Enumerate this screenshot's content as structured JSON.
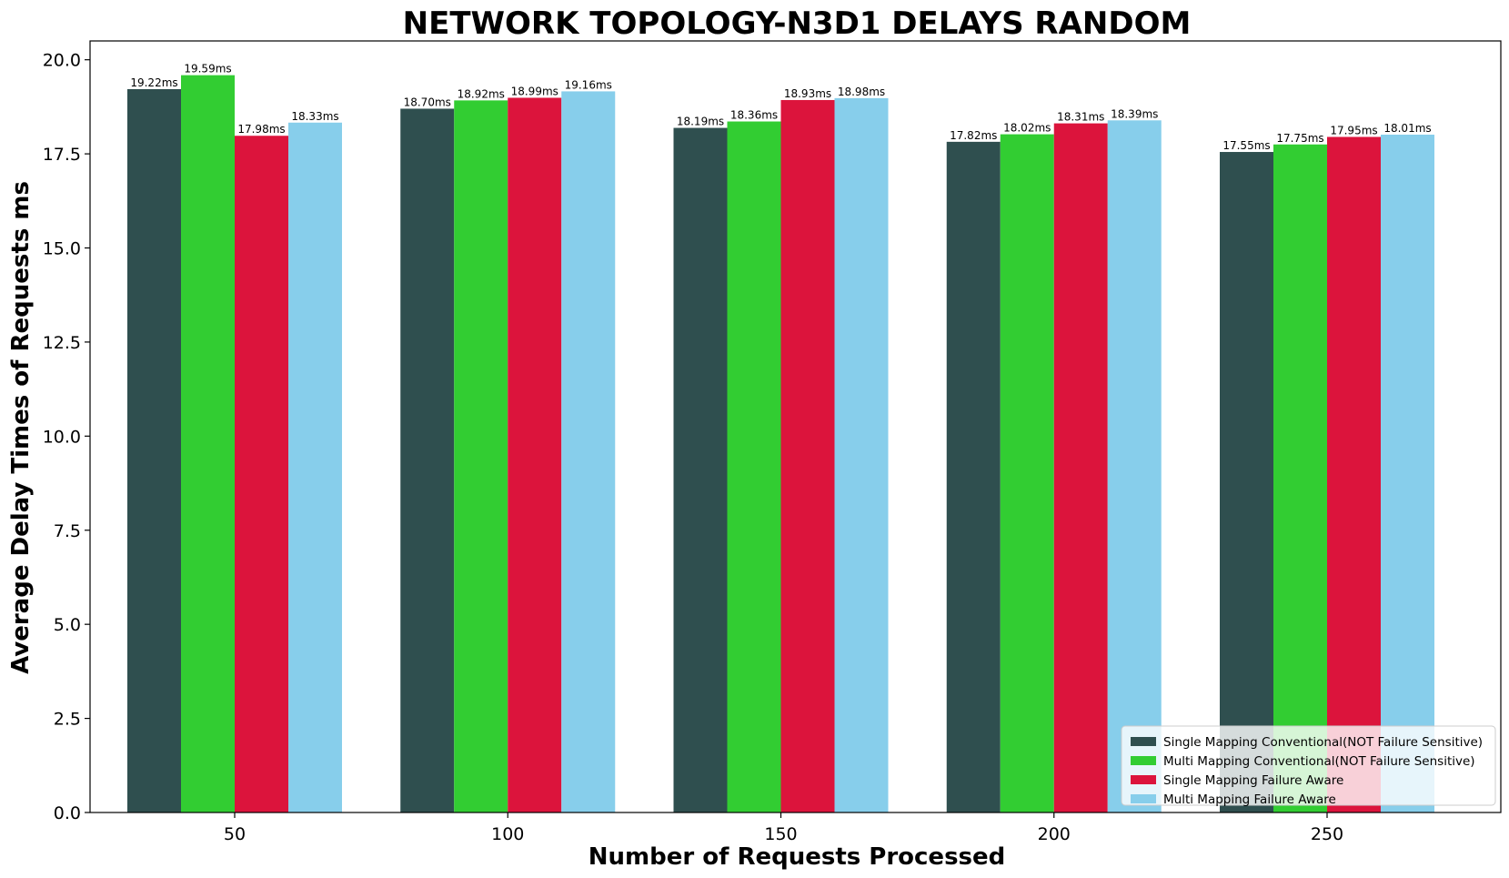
{
  "chart_data": {
    "type": "bar",
    "title": "NETWORK TOPOLOGY-N3D1 DELAYS RANDOM",
    "xlabel": "Number of Requests Processed",
    "ylabel": "Average Delay Times of Requests ms",
    "categories": [
      "50",
      "100",
      "150",
      "200",
      "250"
    ],
    "ylim": [
      0,
      20.5
    ],
    "yticks": [
      "0.0",
      "2.5",
      "5.0",
      "7.5",
      "10.0",
      "12.5",
      "15.0",
      "17.5",
      "20.0"
    ],
    "grid": false,
    "legend_position": "bottom-right",
    "series": [
      {
        "name": "Single Mapping Conventional(NOT Failure Sensitive)",
        "color": "#2f4f4f",
        "values": [
          19.22,
          18.7,
          18.19,
          17.82,
          17.55
        ],
        "labels": [
          "19.22ms",
          "18.70ms",
          "18.19ms",
          "17.82ms",
          "17.55ms"
        ]
      },
      {
        "name": "Multi Mapping Conventional(NOT Failure Sensitive)",
        "color": "#32cd32",
        "values": [
          19.59,
          18.92,
          18.36,
          18.02,
          17.75
        ],
        "labels": [
          "19.59ms",
          "18.92ms",
          "18.36ms",
          "18.02ms",
          "17.75ms"
        ]
      },
      {
        "name": "Single Mapping Failure Aware",
        "color": "#dc143c",
        "values": [
          17.98,
          18.99,
          18.93,
          18.31,
          17.95
        ],
        "labels": [
          "17.98ms",
          "18.99ms",
          "18.93ms",
          "18.31ms",
          "17.95ms"
        ]
      },
      {
        "name": "Multi Mapping Failure Aware",
        "color": "#87ceeb",
        "values": [
          18.33,
          19.16,
          18.98,
          18.39,
          18.01
        ],
        "labels": [
          "18.33ms",
          "19.16ms",
          "18.98ms",
          "18.39ms",
          "18.01ms"
        ]
      }
    ]
  }
}
